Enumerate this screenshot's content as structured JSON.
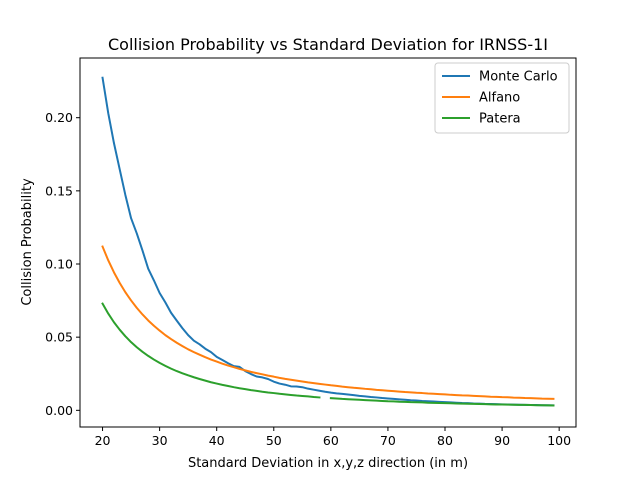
{
  "chart_data": {
    "type": "line",
    "title": "Collision Probability vs Standard Deviation for IRNSS-1I",
    "xlabel": "Standard Deviation in x,y,z direction (in m)",
    "ylabel": "Collision Probability",
    "xlim": [
      16.05,
      102.95
    ],
    "ylim": [
      -0.0114,
      0.2408
    ],
    "xticks": [
      20,
      30,
      40,
      50,
      60,
      70,
      80,
      90,
      100
    ],
    "yticks": [
      0.0,
      0.05,
      0.1,
      0.15,
      0.2
    ],
    "ytick_labels": [
      "0.00",
      "0.05",
      "0.10",
      "0.15",
      "0.20"
    ],
    "grid": false,
    "legend_position": "top-right",
    "x": [
      20,
      21,
      22,
      23,
      24,
      25,
      26,
      27,
      28,
      29,
      30,
      31,
      32,
      33,
      34,
      35,
      36,
      37,
      38,
      39,
      40,
      41,
      42,
      43,
      44,
      45,
      46,
      47,
      48,
      49,
      50,
      51,
      52,
      53,
      54,
      55,
      56,
      57,
      58,
      59,
      60,
      61,
      62,
      63,
      64,
      65,
      66,
      67,
      68,
      69,
      70,
      71,
      72,
      73,
      74,
      75,
      76,
      77,
      78,
      79,
      80,
      81,
      82,
      83,
      84,
      85,
      86,
      87,
      88,
      89,
      90,
      91,
      92,
      93,
      94,
      95,
      96,
      97,
      98,
      99
    ],
    "series": [
      {
        "name": "Monte Carlo",
        "color": "#1f77b4",
        "values": [
          0.2273,
          0.2031,
          0.1826,
          0.1648,
          0.1471,
          0.1313,
          0.1209,
          0.1092,
          0.0968,
          0.0888,
          0.0802,
          0.0738,
          0.0667,
          0.0613,
          0.0561,
          0.0514,
          0.0476,
          0.0451,
          0.0421,
          0.0398,
          0.0365,
          0.0344,
          0.0322,
          0.0302,
          0.0297,
          0.0268,
          0.0248,
          0.0231,
          0.0225,
          0.0214,
          0.0196,
          0.0183,
          0.0175,
          0.0164,
          0.0163,
          0.0158,
          0.0148,
          0.0141,
          0.0134,
          0.0127,
          0.0121,
          0.0116,
          0.0112,
          0.0108,
          0.0104,
          0.0099,
          0.0095,
          0.0091,
          0.0088,
          0.0084,
          0.0081,
          0.0078,
          0.0075,
          0.0072,
          0.0069,
          0.0067,
          0.0064,
          0.0062,
          0.006,
          0.0058,
          0.0056,
          0.0054,
          0.0052,
          0.005,
          0.0049,
          0.0047,
          0.0046,
          0.0044,
          0.0043,
          0.0042,
          0.0041,
          0.004,
          0.0039,
          0.0038,
          0.0037,
          0.0036,
          0.0036,
          0.0035,
          0.0035,
          0.0034
        ]
      },
      {
        "name": "Alfano",
        "color": "#ff7f0e",
        "values": [
          0.1119,
          0.1025,
          0.0943,
          0.0871,
          0.0807,
          0.0751,
          0.07,
          0.0655,
          0.0614,
          0.0578,
          0.0545,
          0.0514,
          0.0487,
          0.0462,
          0.0439,
          0.0417,
          0.0398,
          0.038,
          0.0363,
          0.0347,
          0.0333,
          0.0319,
          0.0306,
          0.0295,
          0.0283,
          0.0273,
          0.0263,
          0.0254,
          0.0246,
          0.0237,
          0.023,
          0.0222,
          0.0215,
          0.0209,
          0.0203,
          0.0197,
          0.0191,
          0.0186,
          0.0181,
          0.0176,
          0.0171,
          0.0167,
          0.0162,
          0.0158,
          0.0154,
          0.0151,
          0.0147,
          0.0144,
          0.014,
          0.0137,
          0.0134,
          0.0131,
          0.0128,
          0.0125,
          0.0123,
          0.012,
          0.0118,
          0.0115,
          0.0113,
          0.0111,
          0.0109,
          0.0106,
          0.0104,
          0.0102,
          0.0101,
          0.0099,
          0.0097,
          0.0095,
          0.0093,
          0.0092,
          0.009,
          0.0089,
          0.0087,
          0.0086,
          0.0084,
          0.0083,
          0.0082,
          0.008,
          0.0079,
          0.0078
        ]
      },
      {
        "name": "Patera",
        "color": "#2ca02c",
        "values": [
          0.0729,
          0.0661,
          0.0602,
          0.0551,
          0.0506,
          0.0466,
          0.0431,
          0.04,
          0.0372,
          0.0347,
          0.0324,
          0.0304,
          0.0285,
          0.0268,
          0.0253,
          0.0239,
          0.0226,
          0.0214,
          0.0203,
          0.0192,
          0.0183,
          0.0174,
          0.0166,
          0.0158,
          0.0151,
          0.0145,
          0.0138,
          0.0133,
          0.0127,
          0.0122,
          0.0118,
          0.0113,
          0.0109,
          0.0105,
          0.0101,
          0.0098,
          0.0095,
          0.0091,
          0.0088,
          null,
          0.0083,
          0.0081,
          0.0078,
          0.0076,
          0.0074,
          0.0072,
          0.007,
          0.0068,
          0.0066,
          0.0064,
          0.0062,
          0.0061,
          0.0059,
          0.0058,
          0.0056,
          0.0055,
          0.0054,
          0.0052,
          0.0051,
          0.005,
          0.0049,
          0.0048,
          0.0047,
          0.0046,
          0.0045,
          0.0044,
          0.0043,
          0.0042,
          0.0041,
          0.004,
          0.004,
          0.0039,
          0.0038,
          0.0037,
          0.0037,
          0.0036,
          0.0035,
          0.0035,
          0.0034,
          0.0033
        ]
      }
    ]
  }
}
